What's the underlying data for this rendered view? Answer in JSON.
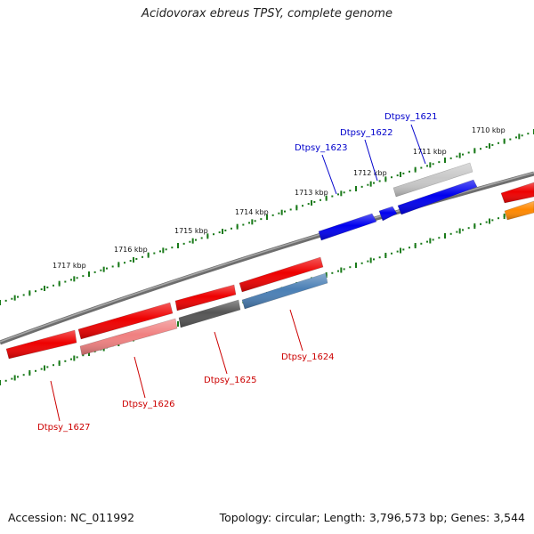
{
  "title": "Acidovorax ebreus TPSY, complete genome",
  "accession": "Accession: NC_011992",
  "summary": "Topology: circular; Length: 3,796,573 bp; Genes: 3,544",
  "colors": {
    "backbone": "#808080",
    "tick": "#1a7a1a",
    "label_forward": "#0000cc",
    "label_reverse": "#cc0000"
  },
  "scale_ticks": [
    {
      "label": "1710 kbp"
    },
    {
      "label": "1711 kbp"
    },
    {
      "label": "1712 kbp"
    },
    {
      "label": "1713 kbp"
    },
    {
      "label": "1714 kbp"
    },
    {
      "label": "1715 kbp"
    },
    {
      "label": "1716 kbp"
    },
    {
      "label": "1717 kbp"
    }
  ],
  "genes": [
    {
      "color": "#c8c8c8",
      "strand": "forward"
    },
    {
      "color": "#0000ee",
      "strand": "forward"
    },
    {
      "color": "#0000ee",
      "strand": "forward"
    },
    {
      "color": "#0000ee",
      "strand": "forward"
    },
    {
      "color": "#ee0000",
      "strand": "forward"
    },
    {
      "color": "#ee0000",
      "strand": "forward"
    },
    {
      "color": "#ee0000",
      "strand": "forward"
    },
    {
      "color": "#ee0000",
      "strand": "forward"
    },
    {
      "color": "#ee0000",
      "strand": "forward"
    },
    {
      "color": "#ff8800",
      "strand": "forward"
    },
    {
      "color": "#4a7fb5",
      "strand": "reverse"
    },
    {
      "color": "#555555",
      "strand": "reverse"
    },
    {
      "color": "#f08080",
      "strand": "reverse"
    }
  ],
  "gene_labels": [
    {
      "text": "Dtpsy_1621",
      "color": "#0000cc"
    },
    {
      "text": "Dtpsy_1622",
      "color": "#0000cc"
    },
    {
      "text": "Dtpsy_1623",
      "color": "#0000cc"
    },
    {
      "text": "Dtpsy_1624",
      "color": "#cc0000"
    },
    {
      "text": "Dtpsy_1625",
      "color": "#cc0000"
    },
    {
      "text": "Dtpsy_1626",
      "color": "#cc0000"
    },
    {
      "text": "Dtpsy_1627",
      "color": "#cc0000"
    }
  ]
}
